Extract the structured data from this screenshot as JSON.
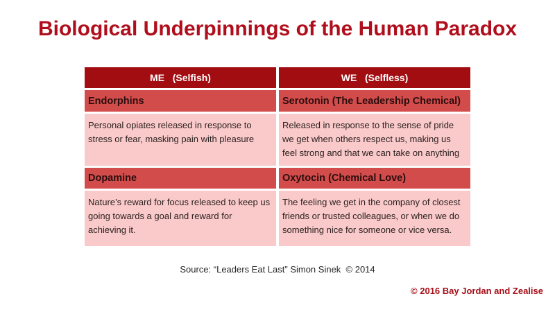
{
  "slide": {
    "title": "Biological Underpinnings of the Human Paradox",
    "source": "Source: “Leaders Eat Last” Simon Sinek  © 2014",
    "copyright": "© 2016 Bay Jordan and Zealise"
  },
  "table": {
    "headers": [
      "ME   (Selfish)",
      "WE   (Selfless)"
    ],
    "sections": [
      {
        "me_chemical": "Endorphins",
        "we_chemical": "Serotonin (The Leadership Chemical)",
        "me_description": "Personal opiates released in response to stress or fear, masking pain with pleasure",
        "we_description": "Released in response to the sense of pride we get when others respect us, making us feel strong and that we can take on anything"
      },
      {
        "me_chemical": "Dopamine",
        "we_chemical": "Oxytocin (Chemical Love)",
        "me_description": "Nature’s reward for focus released to keep us going towards a goal and reward for achieving it.",
        "we_description": "The feeling we get in the company of closest friends or trusted colleagues, or when we do something nice for someone or vice versa."
      }
    ]
  },
  "colors": {
    "title_text": "#B00E1C",
    "header_bg": "#A20D12",
    "header_text": "#FFFFFF",
    "chemical_row_bg": "#D34C4C",
    "description_row_bg": "#FACACA",
    "body_text": "#2B2020",
    "copyright_text": "#A60E18",
    "background": "#FFFFFF"
  }
}
